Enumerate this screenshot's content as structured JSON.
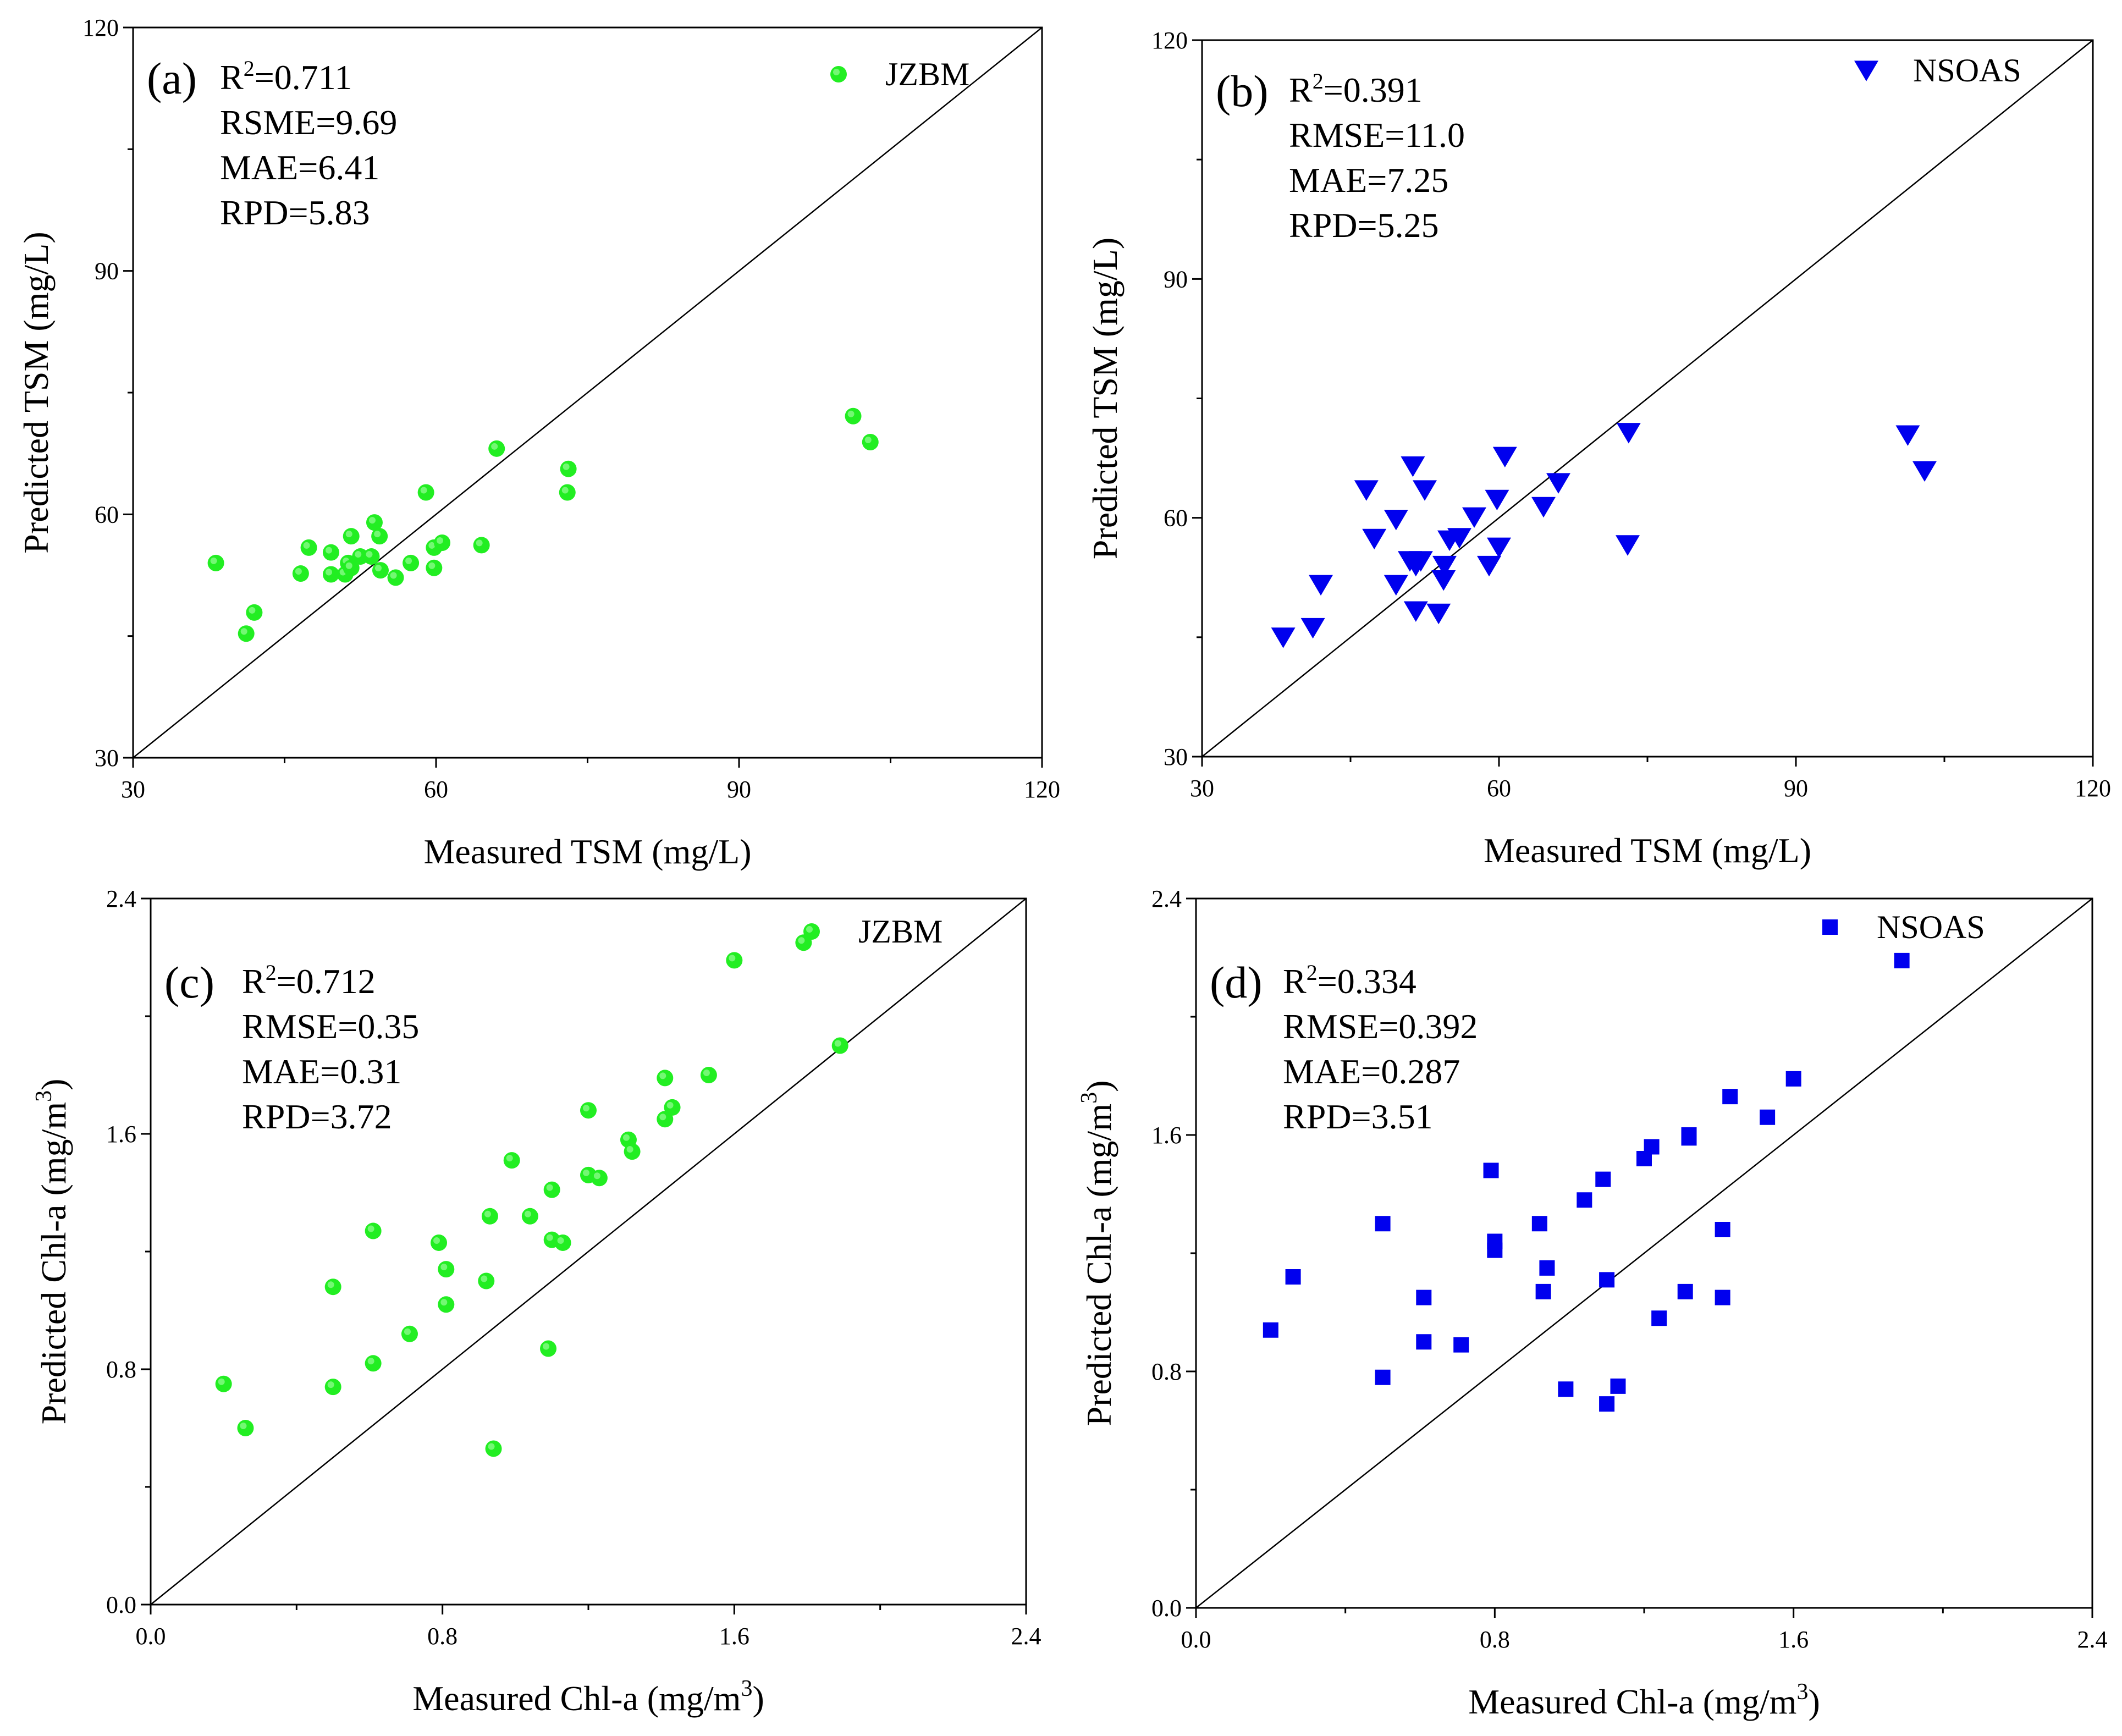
{
  "chart_data": [
    {
      "type": "scatter",
      "panel_label": "(a)",
      "xlabel": "Measured TSM (mg/L)",
      "ylabel": "Predicted TSM (mg/L)",
      "xlim": [
        30,
        120
      ],
      "ylim": [
        30,
        120
      ],
      "xticks": [
        "30",
        "60",
        "90",
        "120"
      ],
      "yticks": [
        "30",
        "60",
        "90",
        "120"
      ],
      "stats": [
        {
          "text": "R",
          "sup": "2",
          "rest": "=0.711"
        },
        {
          "text": "RSME=9.69"
        },
        {
          "text": "MAE=6.41"
        },
        {
          "text": "RPD=5.83"
        }
      ],
      "legend": {
        "label": "JZBM",
        "position": "top-right"
      },
      "marker": "circle",
      "color": "#22ee22",
      "points": [
        [
          38.2,
          54.0
        ],
        [
          41.2,
          45.3
        ],
        [
          42.0,
          47.9
        ],
        [
          46.6,
          52.7
        ],
        [
          47.4,
          55.9
        ],
        [
          49.6,
          52.6
        ],
        [
          49.6,
          55.3
        ],
        [
          51.0,
          52.6
        ],
        [
          51.3,
          54.0
        ],
        [
          51.6,
          57.3
        ],
        [
          51.6,
          53.4
        ],
        [
          52.5,
          54.8
        ],
        [
          53.6,
          54.8
        ],
        [
          53.9,
          59.0
        ],
        [
          54.4,
          57.3
        ],
        [
          54.5,
          53.1
        ],
        [
          56.0,
          52.2
        ],
        [
          57.5,
          54.0
        ],
        [
          59.0,
          62.7
        ],
        [
          59.8,
          53.4
        ],
        [
          59.8,
          55.9
        ],
        [
          60.6,
          56.5
        ],
        [
          64.5,
          56.2
        ],
        [
          66.0,
          68.1
        ],
        [
          73.0,
          62.7
        ],
        [
          73.1,
          65.6
        ],
        [
          101.3,
          72.1
        ],
        [
          103.0,
          68.9
        ]
      ]
    },
    {
      "type": "scatter",
      "panel_label": "(b)",
      "xlabel": "Measured TSM (mg/L)",
      "ylabel": "Predicted TSM (mg/L)",
      "xlim": [
        30,
        120
      ],
      "ylim": [
        30,
        120
      ],
      "xticks": [
        "30",
        "60",
        "90",
        "120"
      ],
      "yticks": [
        "30",
        "60",
        "90",
        "120"
      ],
      "stats": [
        {
          "text": "R",
          "sup": "2",
          "rest": "=0.391"
        },
        {
          "text": "RMSE=11.0"
        },
        {
          "text": "MAE=7.25"
        },
        {
          "text": "RPD=5.25"
        }
      ],
      "legend": {
        "label": "NSOAS",
        "position": "top-right"
      },
      "marker": "triangle-down",
      "color": "#0000ee",
      "points": [
        [
          38.2,
          45.0
        ],
        [
          41.2,
          46.2
        ],
        [
          42.0,
          51.6
        ],
        [
          46.6,
          63.5
        ],
        [
          47.4,
          57.4
        ],
        [
          49.6,
          51.6
        ],
        [
          49.6,
          59.8
        ],
        [
          51.0,
          54.6
        ],
        [
          51.3,
          66.5
        ],
        [
          51.6,
          54.0
        ],
        [
          51.6,
          48.3
        ],
        [
          52.5,
          63.5
        ],
        [
          52.1,
          54.6
        ],
        [
          53.9,
          48.0
        ],
        [
          54.4,
          52.2
        ],
        [
          54.5,
          54.0
        ],
        [
          55.0,
          57.2
        ],
        [
          56.0,
          57.5
        ],
        [
          57.5,
          60.1
        ],
        [
          59.0,
          54.0
        ],
        [
          59.8,
          62.3
        ],
        [
          60.0,
          56.3
        ],
        [
          60.6,
          67.7
        ],
        [
          64.5,
          61.4
        ],
        [
          66.0,
          64.4
        ],
        [
          73.0,
          56.6
        ],
        [
          73.1,
          70.7
        ],
        [
          101.3,
          70.4
        ],
        [
          103.0,
          65.9
        ]
      ]
    },
    {
      "type": "scatter",
      "panel_label": "(c)",
      "xlabel": "Measured Chl-a (mg/m",
      "xlabel_sup": "3",
      "xlabel_end": ")",
      "ylabel": "Predicted Chl-a (mg/m",
      "ylabel_sup": "3",
      "ylabel_end": ")",
      "xlim": [
        0,
        2.4
      ],
      "ylim": [
        0,
        2.4
      ],
      "xticks": [
        "0.0",
        "0.8",
        "1.6",
        "2.4"
      ],
      "yticks": [
        "0.0",
        "0.8",
        "1.6",
        "2.4"
      ],
      "stats": [
        {
          "text": "R",
          "sup": "2",
          "rest": "=0.712"
        },
        {
          "text": "RMSE=0.35"
        },
        {
          "text": "MAE=0.31"
        },
        {
          "text": "RPD=3.72"
        }
      ],
      "legend": {
        "label": "JZBM",
        "position": "top-right"
      },
      "marker": "circle",
      "color": "#22ee22",
      "points": [
        [
          0.2,
          0.75
        ],
        [
          0.26,
          0.6
        ],
        [
          0.5,
          0.74
        ],
        [
          0.5,
          1.08
        ],
        [
          0.61,
          0.82
        ],
        [
          0.61,
          1.27
        ],
        [
          0.71,
          0.92
        ],
        [
          0.79,
          1.23
        ],
        [
          0.81,
          1.02
        ],
        [
          0.81,
          1.14
        ],
        [
          0.92,
          1.1
        ],
        [
          0.93,
          1.32
        ],
        [
          0.94,
          0.53
        ],
        [
          0.99,
          1.51
        ],
        [
          1.04,
          1.32
        ],
        [
          1.09,
          0.87
        ],
        [
          1.1,
          1.41
        ],
        [
          1.1,
          1.24
        ],
        [
          1.13,
          1.23
        ],
        [
          1.2,
          1.46
        ],
        [
          1.2,
          1.68
        ],
        [
          1.23,
          1.45
        ],
        [
          1.31,
          1.58
        ],
        [
          1.32,
          1.54
        ],
        [
          1.41,
          1.79
        ],
        [
          1.41,
          1.65
        ],
        [
          1.43,
          1.69
        ],
        [
          1.53,
          1.8
        ],
        [
          1.6,
          2.19
        ],
        [
          1.79,
          2.25
        ],
        [
          1.89,
          1.9
        ]
      ]
    },
    {
      "type": "scatter",
      "panel_label": "(d)",
      "xlabel": "Measured Chl-a (mg/m",
      "xlabel_sup": "3",
      "xlabel_end": ")",
      "ylabel": "Predicted Chl-a (mg/m",
      "ylabel_sup": "3",
      "ylabel_end": ")",
      "xlim": [
        0,
        2.4
      ],
      "ylim": [
        0,
        2.4
      ],
      "xticks": [
        "0.0",
        "0.8",
        "1.6",
        "2.4"
      ],
      "yticks": [
        "0.0",
        "0.8",
        "1.6",
        "2.4"
      ],
      "stats": [
        {
          "text": "R",
          "sup": "2",
          "rest": "=0.334"
        },
        {
          "text": "RMSE=0.392"
        },
        {
          "text": "MAE=0.287"
        },
        {
          "text": "RPD=3.51"
        }
      ],
      "legend": {
        "label": "NSOAS",
        "position": "top-right"
      },
      "marker": "square",
      "color": "#0000ee",
      "points": [
        [
          0.2,
          0.94
        ],
        [
          0.26,
          1.12
        ],
        [
          0.5,
          0.78
        ],
        [
          0.5,
          1.3
        ],
        [
          0.61,
          0.9
        ],
        [
          0.61,
          1.05
        ],
        [
          0.71,
          0.89
        ],
        [
          0.79,
          1.48
        ],
        [
          0.8,
          1.24
        ],
        [
          0.8,
          1.21
        ],
        [
          0.92,
          1.3
        ],
        [
          0.93,
          1.07
        ],
        [
          0.94,
          1.15
        ],
        [
          0.99,
          0.74
        ],
        [
          1.04,
          1.38
        ],
        [
          1.09,
          1.45
        ],
        [
          1.1,
          1.11
        ],
        [
          1.1,
          0.69
        ],
        [
          1.13,
          0.75
        ],
        [
          1.2,
          1.52
        ],
        [
          1.22,
          1.56
        ],
        [
          1.24,
          0.98
        ],
        [
          1.31,
          1.07
        ],
        [
          1.32,
          1.6
        ],
        [
          1.32,
          1.59
        ],
        [
          1.41,
          1.28
        ],
        [
          1.41,
          1.05
        ],
        [
          1.43,
          1.73
        ],
        [
          1.53,
          1.66
        ],
        [
          1.6,
          1.79
        ],
        [
          1.89,
          2.19
        ]
      ]
    }
  ]
}
